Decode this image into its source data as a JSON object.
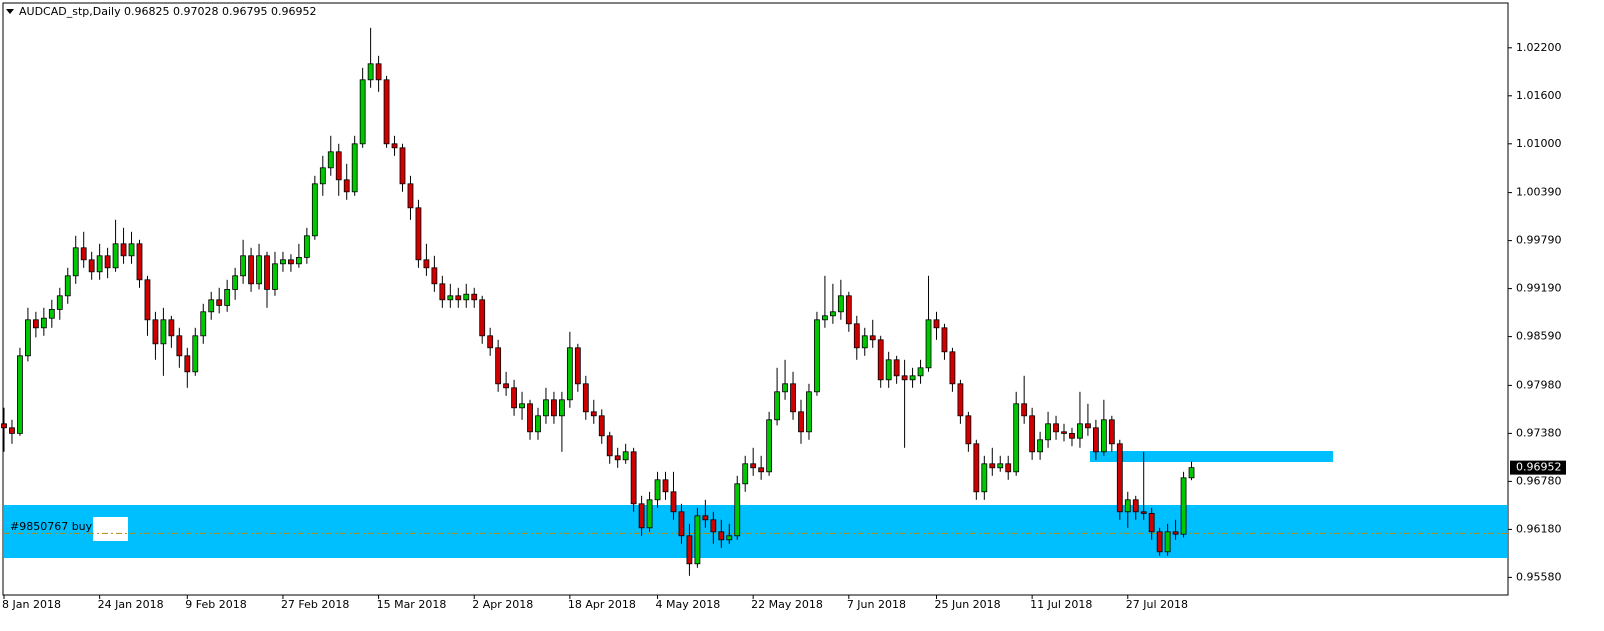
{
  "chart_data": {
    "type": "candlestick",
    "title": "AUDCAD_stp,Daily",
    "ohlc": [
      0.96825,
      0.97028,
      0.96795,
      0.96952
    ],
    "current_price": 0.96952,
    "order_label": "#9850767 buy",
    "order_price": 0.9613,
    "up_color": "#00c800",
    "down_color": "#d00000",
    "ylim": [
      0.9536,
      1.0276
    ],
    "yticks": [
      {
        "value": 1.022,
        "label": "1.02200"
      },
      {
        "value": 1.016,
        "label": "1.01600"
      },
      {
        "value": 1.01,
        "label": "1.01000"
      },
      {
        "value": 1.0039,
        "label": "1.00390"
      },
      {
        "value": 0.9979,
        "label": "0.99790"
      },
      {
        "value": 0.9919,
        "label": "0.99190"
      },
      {
        "value": 0.9859,
        "label": "0.98590"
      },
      {
        "value": 0.9798,
        "label": "0.97980"
      },
      {
        "value": 0.9738,
        "label": "0.97380"
      },
      {
        "value": 0.9678,
        "label": "0.96780"
      },
      {
        "value": 0.9618,
        "label": "0.96180"
      },
      {
        "value": 0.9558,
        "label": "0.95580"
      }
    ],
    "categories": [
      "8 Jan 2018",
      null,
      null,
      null,
      null,
      null,
      null,
      null,
      null,
      null,
      null,
      null,
      "24 Jan 2018",
      null,
      null,
      null,
      null,
      null,
      null,
      null,
      null,
      null,
      null,
      "9 Feb 2018",
      null,
      null,
      null,
      null,
      null,
      null,
      null,
      null,
      null,
      null,
      null,
      "27 Feb 2018",
      null,
      null,
      null,
      null,
      null,
      null,
      null,
      null,
      null,
      null,
      null,
      "15 Mar 2018",
      null,
      null,
      null,
      null,
      null,
      null,
      null,
      null,
      null,
      null,
      null,
      "2 Apr 2018",
      null,
      null,
      null,
      null,
      null,
      null,
      null,
      null,
      null,
      null,
      null,
      "18 Apr 2018",
      null,
      null,
      null,
      null,
      null,
      null,
      null,
      null,
      null,
      null,
      "4 May 2018",
      null,
      null,
      null,
      null,
      null,
      null,
      null,
      null,
      null,
      null,
      null,
      "22 May 2018",
      null,
      null,
      null,
      null,
      null,
      null,
      null,
      null,
      null,
      null,
      null,
      "7 Jun 2018",
      null,
      null,
      null,
      null,
      null,
      null,
      null,
      null,
      null,
      null,
      "25 Jun 2018",
      null,
      null,
      null,
      null,
      null,
      null,
      null,
      null,
      null,
      null,
      null,
      "11 Jul 2018",
      null,
      null,
      null,
      null,
      null,
      null,
      null,
      null,
      null,
      null,
      null,
      "27 Jul 2018",
      null,
      null,
      null,
      null,
      null,
      null,
      null,
      null
    ],
    "candles": [
      [
        0.975,
        0.977,
        0.9715,
        0.9745
      ],
      [
        0.9745,
        0.9755,
        0.9725,
        0.9738
      ],
      [
        0.9738,
        0.9845,
        0.9735,
        0.9835
      ],
      [
        0.9835,
        0.9895,
        0.9828,
        0.988
      ],
      [
        0.988,
        0.989,
        0.9858,
        0.987
      ],
      [
        0.987,
        0.9895,
        0.986,
        0.9882
      ],
      [
        0.9882,
        0.9905,
        0.987,
        0.9893
      ],
      [
        0.9893,
        0.992,
        0.988,
        0.991
      ],
      [
        0.991,
        0.9945,
        0.99,
        0.9935
      ],
      [
        0.9935,
        0.9985,
        0.9925,
        0.997
      ],
      [
        0.997,
        0.999,
        0.9945,
        0.9955
      ],
      [
        0.9955,
        0.9965,
        0.993,
        0.994
      ],
      [
        0.994,
        0.9975,
        0.993,
        0.996
      ],
      [
        0.996,
        0.997,
        0.9932,
        0.9945
      ],
      [
        0.9945,
        1.0005,
        0.994,
        0.9975
      ],
      [
        0.9975,
        0.9995,
        0.995,
        0.996
      ],
      [
        0.996,
        0.999,
        0.995,
        0.9975
      ],
      [
        0.9975,
        0.998,
        0.992,
        0.993
      ],
      [
        0.993,
        0.9935,
        0.986,
        0.988
      ],
      [
        0.988,
        0.989,
        0.983,
        0.985
      ],
      [
        0.985,
        0.9895,
        0.981,
        0.988
      ],
      [
        0.988,
        0.9885,
        0.9845,
        0.986
      ],
      [
        0.986,
        0.987,
        0.982,
        0.9835
      ],
      [
        0.9835,
        0.9845,
        0.9795,
        0.9815
      ],
      [
        0.9815,
        0.987,
        0.981,
        0.986
      ],
      [
        0.986,
        0.99,
        0.985,
        0.989
      ],
      [
        0.989,
        0.9915,
        0.988,
        0.9905
      ],
      [
        0.9905,
        0.992,
        0.9888,
        0.9898
      ],
      [
        0.9898,
        0.993,
        0.989,
        0.9918
      ],
      [
        0.9918,
        0.9945,
        0.9905,
        0.9935
      ],
      [
        0.9935,
        0.998,
        0.9925,
        0.996
      ],
      [
        0.996,
        0.997,
        0.9915,
        0.9925
      ],
      [
        0.9925,
        0.9975,
        0.9918,
        0.996
      ],
      [
        0.996,
        0.9965,
        0.9895,
        0.9918
      ],
      [
        0.9918,
        0.9965,
        0.991,
        0.995
      ],
      [
        0.995,
        0.9965,
        0.994,
        0.9955
      ],
      [
        0.9955,
        0.9962,
        0.994,
        0.995
      ],
      [
        0.995,
        0.9975,
        0.9945,
        0.9958
      ],
      [
        0.9958,
        0.9995,
        0.995,
        0.9985
      ],
      [
        0.9985,
        1.006,
        0.998,
        1.005
      ],
      [
        1.005,
        1.0085,
        1.0035,
        1.007
      ],
      [
        1.007,
        1.011,
        1.006,
        1.009
      ],
      [
        1.009,
        1.01,
        1.0035,
        1.0055
      ],
      [
        1.0055,
        1.0075,
        1.003,
        1.004
      ],
      [
        1.004,
        1.011,
        1.0035,
        1.01
      ],
      [
        1.01,
        1.0195,
        1.0095,
        1.018
      ],
      [
        1.018,
        1.0245,
        1.017,
        1.02
      ],
      [
        1.02,
        1.021,
        1.0165,
        1.018
      ],
      [
        1.018,
        1.0185,
        1.0095,
        1.01
      ],
      [
        1.01,
        1.011,
        1.0085,
        1.0095
      ],
      [
        1.0095,
        1.01,
        1.004,
        1.005
      ],
      [
        1.005,
        1.006,
        1.0005,
        1.002
      ],
      [
        1.002,
        1.003,
        0.9945,
        0.9955
      ],
      [
        0.9955,
        0.9975,
        0.9935,
        0.9945
      ],
      [
        0.9945,
        0.996,
        0.9915,
        0.9925
      ],
      [
        0.9925,
        0.9935,
        0.9895,
        0.9905
      ],
      [
        0.9905,
        0.9925,
        0.9895,
        0.991
      ],
      [
        0.991,
        0.992,
        0.9895,
        0.9905
      ],
      [
        0.9905,
        0.9925,
        0.9895,
        0.9912
      ],
      [
        0.9912,
        0.992,
        0.9895,
        0.9905
      ],
      [
        0.9905,
        0.991,
        0.985,
        0.986
      ],
      [
        0.986,
        0.987,
        0.9835,
        0.9845
      ],
      [
        0.9845,
        0.9855,
        0.979,
        0.98
      ],
      [
        0.98,
        0.9815,
        0.9785,
        0.9795
      ],
      [
        0.9795,
        0.9805,
        0.976,
        0.977
      ],
      [
        0.977,
        0.979,
        0.9755,
        0.9775
      ],
      [
        0.9775,
        0.978,
        0.973,
        0.974
      ],
      [
        0.974,
        0.977,
        0.973,
        0.976
      ],
      [
        0.976,
        0.9795,
        0.975,
        0.978
      ],
      [
        0.978,
        0.979,
        0.975,
        0.976
      ],
      [
        0.976,
        0.979,
        0.9715,
        0.978
      ],
      [
        0.978,
        0.9865,
        0.977,
        0.9845
      ],
      [
        0.9845,
        0.985,
        0.979,
        0.98
      ],
      [
        0.98,
        0.981,
        0.9755,
        0.9765
      ],
      [
        0.9765,
        0.978,
        0.975,
        0.976
      ],
      [
        0.976,
        0.9768,
        0.9725,
        0.9735
      ],
      [
        0.9735,
        0.974,
        0.97,
        0.971
      ],
      [
        0.971,
        0.972,
        0.9695,
        0.9705
      ],
      [
        0.9705,
        0.9725,
        0.97,
        0.9715
      ],
      [
        0.9715,
        0.972,
        0.964,
        0.965
      ],
      [
        0.965,
        0.966,
        0.961,
        0.962
      ],
      [
        0.962,
        0.9665,
        0.9615,
        0.9655
      ],
      [
        0.9655,
        0.969,
        0.9645,
        0.968
      ],
      [
        0.968,
        0.969,
        0.9655,
        0.9665
      ],
      [
        0.9665,
        0.969,
        0.963,
        0.964
      ],
      [
        0.964,
        0.965,
        0.96,
        0.961
      ],
      [
        0.961,
        0.9625,
        0.956,
        0.9575
      ],
      [
        0.9575,
        0.9645,
        0.957,
        0.9635
      ],
      [
        0.9635,
        0.9655,
        0.962,
        0.963
      ],
      [
        0.963,
        0.964,
        0.96,
        0.9615
      ],
      [
        0.9615,
        0.963,
        0.9595,
        0.9605
      ],
      [
        0.9605,
        0.9625,
        0.96,
        0.961
      ],
      [
        0.961,
        0.9685,
        0.9605,
        0.9675
      ],
      [
        0.9675,
        0.971,
        0.9665,
        0.97
      ],
      [
        0.97,
        0.972,
        0.9685,
        0.9695
      ],
      [
        0.9695,
        0.971,
        0.968,
        0.969
      ],
      [
        0.969,
        0.9765,
        0.9685,
        0.9755
      ],
      [
        0.9755,
        0.982,
        0.9748,
        0.979
      ],
      [
        0.979,
        0.983,
        0.978,
        0.98
      ],
      [
        0.98,
        0.9815,
        0.9755,
        0.9765
      ],
      [
        0.9765,
        0.978,
        0.9725,
        0.974
      ],
      [
        0.974,
        0.98,
        0.973,
        0.979
      ],
      [
        0.979,
        0.989,
        0.9785,
        0.988
      ],
      [
        0.988,
        0.9935,
        0.987,
        0.9885
      ],
      [
        0.9885,
        0.9925,
        0.9875,
        0.989
      ],
      [
        0.989,
        0.993,
        0.988,
        0.991
      ],
      [
        0.991,
        0.9915,
        0.9865,
        0.9875
      ],
      [
        0.9875,
        0.9885,
        0.983,
        0.9845
      ],
      [
        0.9845,
        0.987,
        0.9835,
        0.986
      ],
      [
        0.986,
        0.988,
        0.9845,
        0.9855
      ],
      [
        0.9855,
        0.986,
        0.9795,
        0.9805
      ],
      [
        0.9805,
        0.984,
        0.9795,
        0.983
      ],
      [
        0.983,
        0.9835,
        0.98,
        0.981
      ],
      [
        0.981,
        0.983,
        0.972,
        0.9805
      ],
      [
        0.9805,
        0.982,
        0.9795,
        0.981
      ],
      [
        0.981,
        0.983,
        0.98,
        0.982
      ],
      [
        0.982,
        0.9935,
        0.9815,
        0.988
      ],
      [
        0.988,
        0.989,
        0.9855,
        0.987
      ],
      [
        0.987,
        0.9875,
        0.983,
        0.984
      ],
      [
        0.984,
        0.9845,
        0.979,
        0.98
      ],
      [
        0.98,
        0.9805,
        0.975,
        0.976
      ],
      [
        0.976,
        0.9765,
        0.9715,
        0.9725
      ],
      [
        0.9725,
        0.973,
        0.9655,
        0.9665
      ],
      [
        0.9665,
        0.971,
        0.9655,
        0.97
      ],
      [
        0.97,
        0.972,
        0.9685,
        0.9695
      ],
      [
        0.9695,
        0.971,
        0.969,
        0.97
      ],
      [
        0.97,
        0.971,
        0.968,
        0.969
      ],
      [
        0.969,
        0.979,
        0.9685,
        0.9775
      ],
      [
        0.9775,
        0.981,
        0.975,
        0.976
      ],
      [
        0.976,
        0.977,
        0.9705,
        0.9715
      ],
      [
        0.9715,
        0.974,
        0.9705,
        0.973
      ],
      [
        0.973,
        0.9765,
        0.972,
        0.975
      ],
      [
        0.975,
        0.976,
        0.973,
        0.974
      ],
      [
        0.974,
        0.975,
        0.9728,
        0.9738
      ],
      [
        0.9738,
        0.9745,
        0.9722,
        0.9732
      ],
      [
        0.9732,
        0.979,
        0.972,
        0.975
      ],
      [
        0.975,
        0.9775,
        0.9735,
        0.9745
      ],
      [
        0.9745,
        0.9755,
        0.9705,
        0.9715
      ],
      [
        0.9715,
        0.978,
        0.971,
        0.9755
      ],
      [
        0.9755,
        0.976,
        0.9715,
        0.9725
      ],
      [
        0.9725,
        0.973,
        0.963,
        0.964
      ],
      [
        0.964,
        0.9665,
        0.962,
        0.9655
      ],
      [
        0.9655,
        0.966,
        0.963,
        0.964
      ],
      [
        0.964,
        0.9715,
        0.963,
        0.9638
      ],
      [
        0.9638,
        0.9645,
        0.9605,
        0.9615
      ],
      [
        0.9615,
        0.962,
        0.9585,
        0.959
      ],
      [
        0.959,
        0.9625,
        0.9585,
        0.9615
      ],
      [
        0.9615,
        0.963,
        0.9605,
        0.9612
      ],
      [
        0.9612,
        0.969,
        0.9608,
        0.96825
      ],
      [
        0.96825,
        0.97028,
        0.96795,
        0.96952
      ]
    ]
  }
}
